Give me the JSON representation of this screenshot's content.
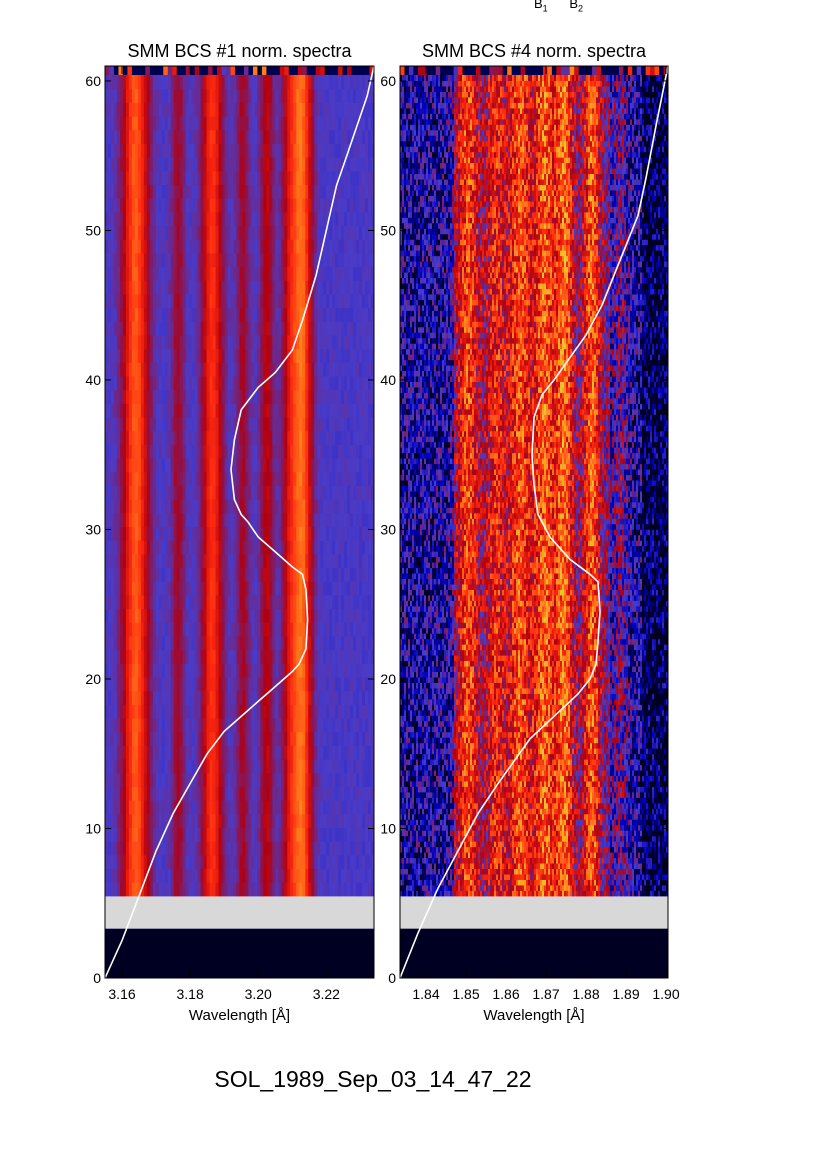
{
  "header_marks": {
    "b1_base": "B",
    "b1_sub": "1",
    "b2_base": "B",
    "b2_sub": "2"
  },
  "caption": "SOL_1989_Sep_03_14_47_22",
  "chart_data": [
    {
      "type": "heatmap",
      "title": "SMM BCS #1 norm. spectra",
      "xlabel": "Wavelength [Å]",
      "ylabel": "",
      "xlim": [
        3.155,
        3.234
      ],
      "ylim": [
        0,
        61
      ],
      "xticks": [
        "3.16",
        "3.18",
        "3.20",
        "3.22"
      ],
      "xtick_values": [
        3.16,
        3.18,
        3.2,
        3.22
      ],
      "yticks": [
        "0",
        "10",
        "20",
        "30",
        "40",
        "50",
        "60"
      ],
      "ytick_values": [
        0,
        10,
        20,
        30,
        40,
        50,
        60
      ],
      "colormap": [
        "#000020",
        "#0000c0",
        "#4a3cc8",
        "#b00010",
        "#ff2a10",
        "#ffa020",
        "#c0ff40"
      ],
      "background_color": "#3030e0",
      "data_gap_color": "#d8d8d8",
      "data_start_y": 5.5,
      "gap_range": [
        3.3,
        5.5
      ],
      "line_features": [
        {
          "x": 3.164,
          "width": 0.0075,
          "strength": 0.95
        },
        {
          "x": 3.1765,
          "width": 0.004,
          "strength": 0.35
        },
        {
          "x": 3.1865,
          "width": 0.006,
          "strength": 0.8
        },
        {
          "x": 3.1955,
          "width": 0.004,
          "strength": 0.35
        },
        {
          "x": 3.2025,
          "width": 0.004,
          "strength": 0.45
        },
        {
          "x": 3.2095,
          "width": 0.005,
          "strength": 0.55
        },
        {
          "x": 3.213,
          "width": 0.0055,
          "strength": 0.95
        }
      ],
      "overlay_curve": {
        "color": "#ffffff",
        "x": [
          3.155,
          3.16,
          3.165,
          3.17,
          3.175,
          3.18,
          3.185,
          3.19,
          3.195,
          3.2,
          3.205,
          3.21,
          3.212,
          3.214,
          3.2145,
          3.214,
          3.213,
          3.21,
          3.205,
          3.2,
          3.197,
          3.195,
          3.193,
          3.192,
          3.193,
          3.195,
          3.2,
          3.205,
          3.21,
          3.213,
          3.217,
          3.219,
          3.221,
          3.223,
          3.226,
          3.229,
          3.232,
          3.234
        ],
        "y": [
          0,
          2.5,
          5.5,
          8.5,
          11,
          13,
          15,
          16.5,
          17.5,
          18.5,
          19.5,
          20.5,
          21,
          22,
          24,
          26,
          27,
          27.5,
          28.5,
          29.5,
          30.5,
          31,
          32,
          34,
          36,
          38,
          39.5,
          40.5,
          42,
          44,
          47,
          49,
          51,
          53,
          55,
          57,
          59,
          61
        ]
      }
    },
    {
      "type": "heatmap",
      "title": "SMM BCS #4 norm. spectra",
      "xlabel": "Wavelength [Å]",
      "ylabel": "",
      "xlim": [
        1.8335,
        1.9005
      ],
      "ylim": [
        0,
        61
      ],
      "xticks": [
        "1.84",
        "1.85",
        "1.86",
        "1.87",
        "1.88",
        "1.89",
        "1.90"
      ],
      "xtick_values": [
        1.84,
        1.85,
        1.86,
        1.87,
        1.88,
        1.89,
        1.9
      ],
      "yticks": [
        "0",
        "10",
        "20",
        "30",
        "40",
        "50",
        "60"
      ],
      "ytick_values": [
        0,
        10,
        20,
        30,
        40,
        50,
        60
      ],
      "colormap": [
        "#000020",
        "#0000c0",
        "#4a3cc8",
        "#b00010",
        "#ff2a10",
        "#ffa020",
        "#c0ff40"
      ],
      "background_color": "#0a0a50",
      "data_gap_color": "#d8d8d8",
      "data_start_y": 5.5,
      "gap_range": [
        3.3,
        5.5
      ],
      "line_features": [
        {
          "x": 1.8505,
          "width": 0.006,
          "strength": 0.75
        },
        {
          "x": 1.8575,
          "width": 0.005,
          "strength": 0.6
        },
        {
          "x": 1.8635,
          "width": 0.006,
          "strength": 0.8
        },
        {
          "x": 1.8695,
          "width": 0.005,
          "strength": 0.85
        },
        {
          "x": 1.8745,
          "width": 0.005,
          "strength": 0.9
        },
        {
          "x": 1.8815,
          "width": 0.0045,
          "strength": 0.85
        },
        {
          "x": 1.8885,
          "width": 0.004,
          "strength": 0.45
        }
      ],
      "overlay_curve": {
        "color": "#ffffff",
        "x": [
          1.8335,
          1.838,
          1.843,
          1.848,
          1.853,
          1.858,
          1.862,
          1.866,
          1.87,
          1.874,
          1.878,
          1.881,
          1.8825,
          1.883,
          1.8835,
          1.883,
          1.881,
          1.876,
          1.871,
          1.868,
          1.867,
          1.8665,
          1.867,
          1.869,
          1.872,
          1.876,
          1.88,
          1.884,
          1.887,
          1.89,
          1.893,
          1.895,
          1.8975,
          1.9005
        ],
        "y": [
          0,
          3,
          6,
          8.5,
          11,
          13,
          14.5,
          16,
          17,
          18,
          19,
          20,
          21,
          22.5,
          24.5,
          26.5,
          27,
          28,
          29.5,
          31,
          33,
          35,
          37.5,
          39,
          40,
          41.5,
          43,
          45,
          47,
          49,
          51,
          53.5,
          57,
          61
        ]
      }
    }
  ]
}
